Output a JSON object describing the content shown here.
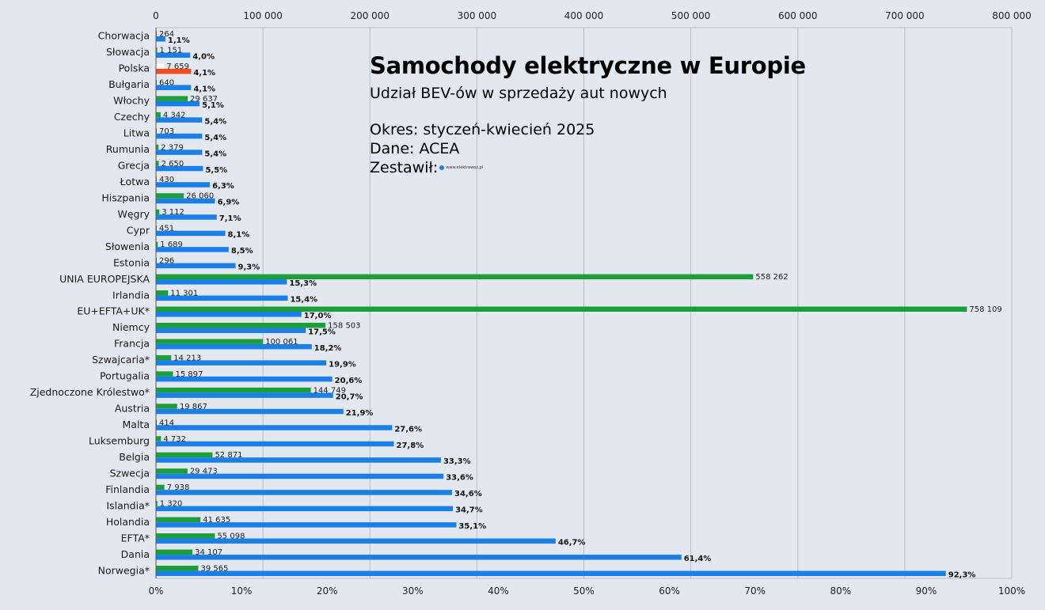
{
  "chart_data": {
    "type": "bar",
    "title": "Samochody elektryczne w Europie",
    "subtitle": "Udział BEV-ów w sprzedaży aut nowych",
    "notes": [
      "Okres: styczeń-kwiecień 2025",
      "Dane: ACEA",
      "Zestawił:"
    ],
    "credit_logo_text": "www.elektrowoz.pl",
    "top_axis": {
      "ticks": [
        "0",
        "100 000",
        "200 000",
        "300 000",
        "400 000",
        "500 000",
        "600 000",
        "700 000",
        "800 000"
      ],
      "range": [
        0,
        800000
      ]
    },
    "bottom_axis": {
      "ticks": [
        "0%",
        "10%",
        "20%",
        "30%",
        "40%",
        "50%",
        "60%",
        "70%",
        "80%",
        "90%",
        "100%"
      ],
      "range": [
        0,
        100
      ]
    },
    "colors": {
      "count": "#1e9e3a",
      "share": "#1a7fe6",
      "highlight": "#f24a1d",
      "background": "#e3e7ef",
      "grid": "#b9bec8"
    },
    "highlight_category": "Polska",
    "categories": [
      "Chorwacja",
      "Słowacja",
      "Polska",
      "Bułgaria",
      "Włochy",
      "Czechy",
      "Litwa",
      "Rumunia",
      "Grecja",
      "Łotwa",
      "Hiszpania",
      "Węgry",
      "Cypr",
      "Słowenia",
      "Estonia",
      "UNIA EUROPEJSKA",
      "Irlandia",
      "EU+EFTA+UK*",
      "Niemcy",
      "Francja",
      "Szwajcaria*",
      "Portugalia",
      "Zjednoczone Królestwo*",
      "Austria",
      "Malta",
      "Luksemburg",
      "Belgia",
      "Szwecja",
      "Finlandia",
      "Islandia*",
      "Holandia",
      "EFTA*",
      "Dania",
      "Norwegia*"
    ],
    "series": [
      {
        "axis": "top",
        "values": [
          264,
          1151,
          7659,
          640,
          29637,
          4342,
          703,
          2379,
          2650,
          430,
          26060,
          3112,
          451,
          1689,
          296,
          558262,
          11301,
          758109,
          158503,
          100061,
          14213,
          15897,
          144749,
          19867,
          414,
          4732,
          52871,
          29473,
          7938,
          1320,
          41635,
          55098,
          34107,
          39565
        ],
        "labels": [
          "264",
          "1 151",
          "7 659",
          "640",
          "29 637",
          "4 342",
          "703",
          "2 379",
          "2 650",
          "430",
          "26 060",
          "3 112",
          "451",
          "1 689",
          "296",
          "558 262",
          "11 301",
          "758 109",
          "158 503",
          "100 061",
          "14 213",
          "15 897",
          "144 749",
          "19 867",
          "414",
          "4 732",
          "52 871",
          "29 473",
          "7 938",
          "1 320",
          "41 635",
          "55 098",
          "34 107",
          "39 565"
        ]
      },
      {
        "axis": "bottom",
        "values": [
          1.1,
          4.0,
          4.1,
          4.1,
          5.1,
          5.4,
          5.4,
          5.4,
          5.5,
          6.3,
          6.9,
          7.1,
          8.1,
          8.5,
          9.3,
          15.3,
          15.4,
          17.0,
          17.5,
          18.2,
          19.9,
          20.6,
          20.7,
          21.9,
          27.6,
          27.8,
          33.3,
          33.6,
          34.6,
          34.7,
          35.1,
          46.7,
          61.4,
          92.3
        ],
        "labels": [
          "1,1%",
          "4,0%",
          "4,1%",
          "4,1%",
          "5,1%",
          "5,4%",
          "5,4%",
          "5,4%",
          "5,5%",
          "6,3%",
          "6,9%",
          "7,1%",
          "8,1%",
          "8,5%",
          "9,3%",
          "15,3%",
          "15,4%",
          "17,0%",
          "17,5%",
          "18,2%",
          "19,9%",
          "20,6%",
          "20,7%",
          "21,9%",
          "27,6%",
          "27,8%",
          "33,3%",
          "33,6%",
          "34,6%",
          "34,7%",
          "35,1%",
          "46,7%",
          "61,4%",
          "92,3%"
        ]
      }
    ]
  }
}
